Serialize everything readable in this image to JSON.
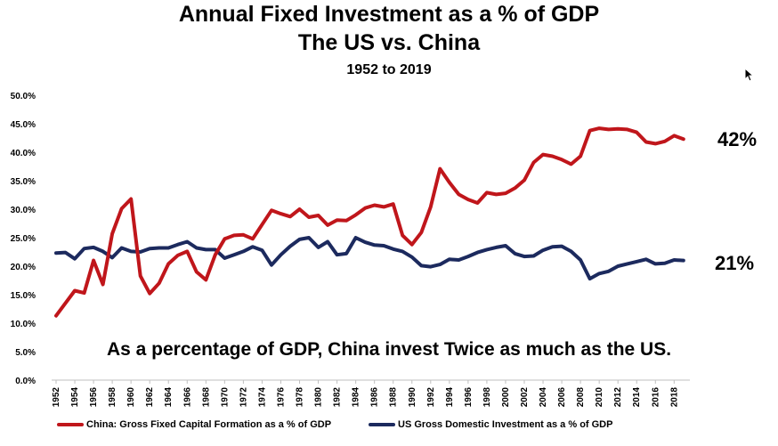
{
  "title": {
    "line1": "Annual Fixed Investment as a % of GDP",
    "line2": "The US vs. China",
    "line3": "1952 to 2019"
  },
  "annotation": "As a percentage of GDP, China invest Twice as much as the US.",
  "end_labels": {
    "china": "42%",
    "us": "21%"
  },
  "colors": {
    "china": "#c0161b",
    "us": "#1c2a5e"
  },
  "icons": {
    "cursor": "mouse-pointer-icon"
  },
  "chart_data": {
    "type": "line",
    "title": "Annual Fixed Investment as a % of GDP",
    "subtitle": "The US vs. China — 1952 to 2019",
    "xlabel": "",
    "ylabel": "",
    "ylim": [
      0,
      50
    ],
    "yticks": [
      "0.0%",
      "5.0%",
      "10.0%",
      "15.0%",
      "20.0%",
      "25.0%",
      "30.0%",
      "35.0%",
      "40.0%",
      "45.0%",
      "50.0%"
    ],
    "xticks": [
      "1952",
      "1954",
      "1956",
      "1958",
      "1960",
      "1962",
      "1964",
      "1966",
      "1968",
      "1970",
      "1972",
      "1974",
      "1976",
      "1978",
      "1980",
      "1982",
      "1984",
      "1986",
      "1988",
      "1990",
      "1992",
      "1994",
      "1996",
      "1998",
      "2000",
      "2002",
      "2004",
      "2006",
      "2008",
      "2010",
      "2012",
      "2014",
      "2016",
      "2018"
    ],
    "x": [
      1952,
      1953,
      1954,
      1955,
      1956,
      1957,
      1958,
      1959,
      1960,
      1961,
      1962,
      1963,
      1964,
      1965,
      1966,
      1967,
      1968,
      1969,
      1970,
      1971,
      1972,
      1973,
      1974,
      1975,
      1976,
      1977,
      1978,
      1979,
      1980,
      1981,
      1982,
      1983,
      1984,
      1985,
      1986,
      1987,
      1988,
      1989,
      1990,
      1991,
      1992,
      1993,
      1994,
      1995,
      1996,
      1997,
      1998,
      1999,
      2000,
      2001,
      2002,
      2003,
      2004,
      2005,
      2006,
      2007,
      2008,
      2009,
      2010,
      2011,
      2012,
      2013,
      2014,
      2015,
      2016,
      2017,
      2018,
      2019
    ],
    "grid": false,
    "legend_position": "bottom",
    "series": [
      {
        "name": "China: Gross Fixed Capital Formation as a % of GDP",
        "color": "#c0161b",
        "values": [
          11.3,
          13.5,
          15.7,
          15.3,
          21.0,
          16.8,
          25.7,
          30.1,
          31.8,
          18.3,
          15.2,
          17.0,
          20.4,
          21.9,
          22.6,
          19.0,
          17.6,
          22.0,
          24.8,
          25.4,
          25.5,
          24.8,
          27.3,
          29.8,
          29.2,
          28.7,
          30.0,
          28.6,
          28.9,
          27.2,
          28.1,
          28.0,
          29.0,
          30.2,
          30.7,
          30.4,
          30.9,
          25.4,
          23.8,
          25.9,
          30.4,
          37.1,
          34.7,
          32.6,
          31.7,
          31.1,
          32.9,
          32.6,
          32.8,
          33.7,
          35.1,
          38.2,
          39.6,
          39.3,
          38.7,
          37.9,
          39.3,
          43.8,
          44.2,
          44.0,
          44.1,
          44.0,
          43.5,
          41.8,
          41.5,
          41.9,
          42.9,
          42.3
        ]
      },
      {
        "name": "US Gross Domestic Investment as a % of GDP",
        "color": "#1c2a5e",
        "values": [
          22.3,
          22.4,
          21.3,
          23.1,
          23.3,
          22.6,
          21.5,
          23.2,
          22.6,
          22.5,
          23.1,
          23.2,
          23.2,
          23.8,
          24.3,
          23.2,
          22.9,
          22.9,
          21.4,
          22.0,
          22.6,
          23.4,
          22.8,
          20.2,
          22.0,
          23.5,
          24.7,
          25.0,
          23.3,
          24.3,
          22.0,
          22.2,
          25.0,
          24.2,
          23.7,
          23.6,
          23.0,
          22.6,
          21.6,
          20.1,
          19.9,
          20.3,
          21.2,
          21.1,
          21.7,
          22.4,
          22.9,
          23.3,
          23.6,
          22.2,
          21.7,
          21.8,
          22.8,
          23.4,
          23.5,
          22.6,
          21.1,
          17.8,
          18.7,
          19.1,
          20.0,
          20.4,
          20.8,
          21.2,
          20.4,
          20.5,
          21.1,
          21.0
        ]
      }
    ]
  }
}
